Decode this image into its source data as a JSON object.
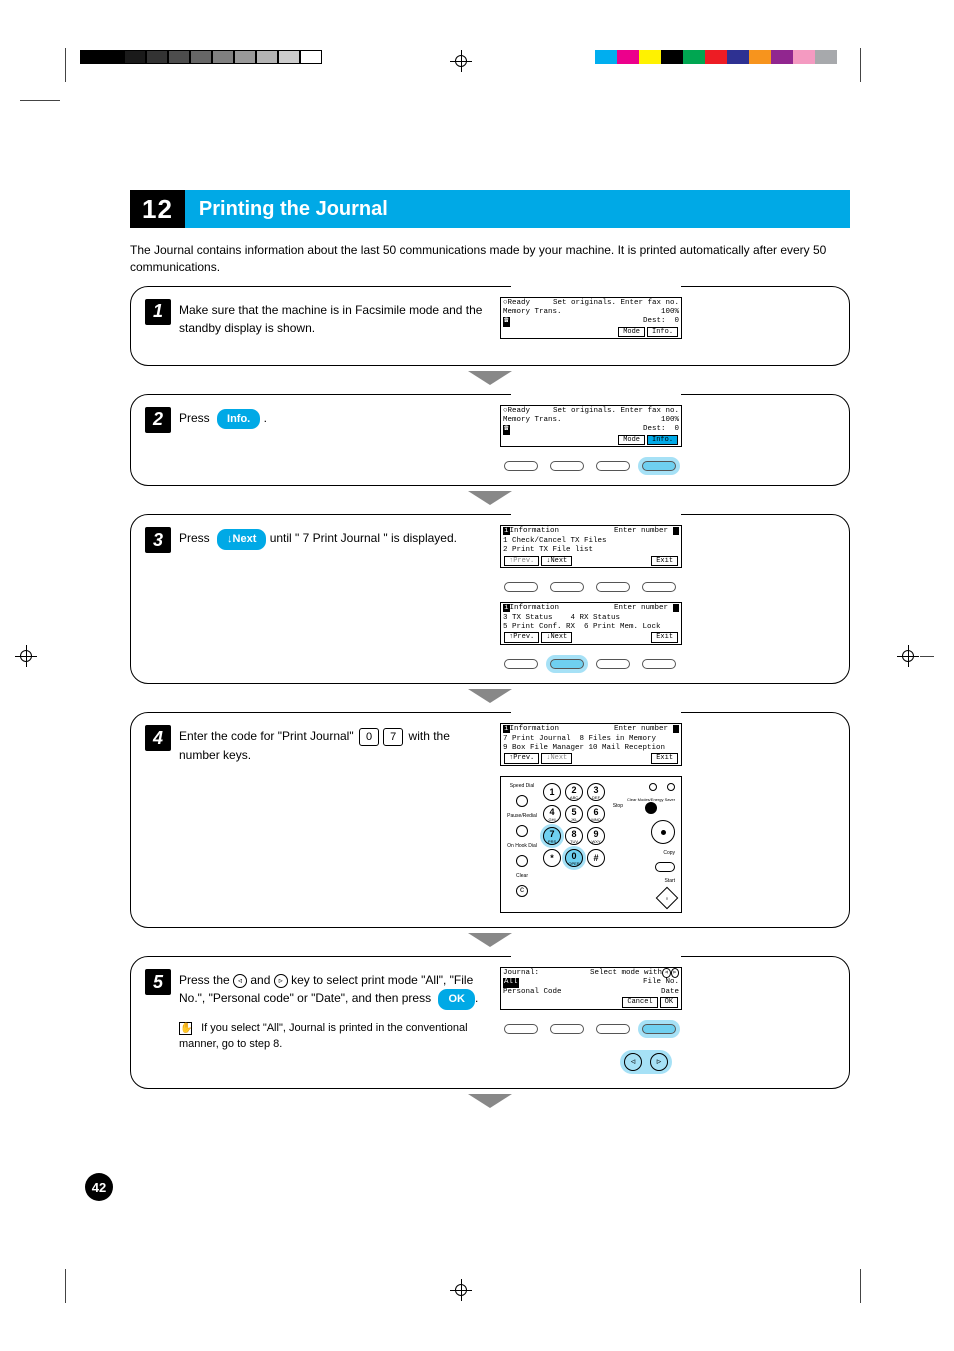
{
  "strips": {
    "gray": [
      "#000000",
      "#000000",
      "#1a1a1a",
      "#333333",
      "#4d4d4d",
      "#666666",
      "#808080",
      "#999999",
      "#b3b3b3",
      "#cccccc",
      "#ffffff"
    ],
    "gray_border": "#000000",
    "color": [
      "#00aeef",
      "#ec008c",
      "#fff200",
      "#000000",
      "#00a651",
      "#ed1c24",
      "#2e3192",
      "#f7941d",
      "#91268f",
      "#f49ac1",
      "#a7a9ac"
    ]
  },
  "header": {
    "tab": "12",
    "title": "Printing the Journal"
  },
  "intro": "The Journal contains information about the last 50 communications made by your machine. It is printed automatically after every 50 communications.",
  "steps": [
    {
      "num": "1",
      "text": "Make sure that the machine is in Facsimile mode and the standby display is shown.",
      "lcd1": {
        "ready": "Ready",
        "right": "Set originals. Enter fax no.",
        "line2_left": "Memory Trans.",
        "line2_right": "100%",
        "tel_icon": "☎",
        "dest": "Dest:  0",
        "btn1": "Mode",
        "btn2": "Info."
      }
    },
    {
      "num": "2",
      "text_pre": "Press ",
      "btn_label": "Info.",
      "text_post": ".",
      "lcd1": {
        "ready": "Ready",
        "right": "Set originals. Enter fax no.",
        "line2_left": "Memory Trans.",
        "line2_right": "100%",
        "tel_icon": "☎",
        "dest": "Dest:  0",
        "btn1": "Mode",
        "btn2": "Info."
      }
    },
    {
      "num": "3",
      "text_pre": "Press ",
      "btn_label": "↓Next",
      "text_post": " until \" 7 Print Journal \" is displayed.",
      "lcdA": {
        "title": "Information",
        "right": "Enter number",
        "l1": "1 Check/Cancel TX Files",
        "l2": "2 Print TX File list",
        "prev": "↑Prev.",
        "next": "↓Next",
        "exit": "Exit"
      },
      "lcdB": {
        "title": "Information",
        "right": "Enter number",
        "l1": "3 TX Status    4 RX Status",
        "l2": "5 Print Conf. RX  6 Print Mem. Lock",
        "prev": "↑Prev.",
        "next": "↓Next",
        "exit": "Exit"
      }
    },
    {
      "num": "4",
      "text_pre": "Enter the code for \"Print Journal\" ",
      "key_a": "0",
      "key_b": "7",
      "text_post": " with the number keys.",
      "lcd": {
        "title": "Information",
        "right": "Enter number",
        "l1": "7 Print Journal  8 Files in Memory",
        "l2": "9 Box File Manager 10 Mail Reception",
        "prev": "↑Prev.",
        "next": "↓Next",
        "exit": "Exit"
      },
      "keypad": {
        "side_labels": [
          "Speed Dial",
          "Pause/Redial",
          "On Hook Dial",
          "Clear"
        ],
        "right_labels": [
          "Stop",
          "Clear Modes/Energy Saver",
          "Copy",
          "Start"
        ],
        "highlight": [
          "7",
          "0"
        ],
        "keys": [
          {
            "d": "1",
            "s": ""
          },
          {
            "d": "2",
            "s": "ABC"
          },
          {
            "d": "3",
            "s": "DEF"
          },
          {
            "d": "4",
            "s": "GHI"
          },
          {
            "d": "5",
            "s": "JKL"
          },
          {
            "d": "6",
            "s": "MNO"
          },
          {
            "d": "7",
            "s": "PRS"
          },
          {
            "d": "8",
            "s": "TUV"
          },
          {
            "d": "9",
            "s": "WXY"
          },
          {
            "d": "*",
            "s": ""
          },
          {
            "d": "0",
            "s": "OPER"
          },
          {
            "d": "#",
            "s": ""
          }
        ]
      }
    },
    {
      "num": "5",
      "text_pre": "Press the ",
      "arrow_l": "◃",
      "arrow_r": "▹",
      "text_mid": " key to select print mode \"All\", \"File No.\", \"Personal code\" or \"Date\", and then press ",
      "ok_label": "OK",
      "text_post": ".",
      "note": "If you select \"All\", Journal is printed in the conventional manner, go to step 8.",
      "lcd": {
        "title": "Journal:",
        "right": "Select mode with",
        "arrow_l": "◃",
        "arrow_r": "▹",
        "row_l": "All",
        "row_r": "File No.",
        "row2_l": "Personal Code",
        "row2_r": "Date",
        "cancel": "Cancel",
        "ok": "OK"
      }
    }
  ],
  "page_number": "42",
  "colors": {
    "accent": "#00a9e6",
    "hl_fill": "#6fd0f0",
    "arrow_gray": "#888888"
  }
}
